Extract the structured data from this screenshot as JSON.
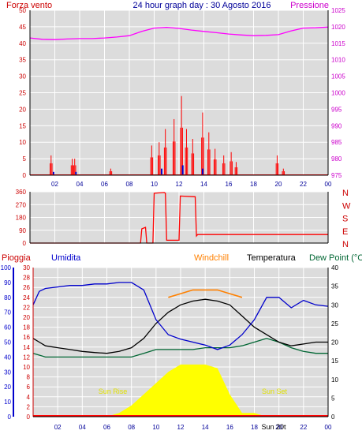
{
  "header": {
    "left_label": "Forza vento",
    "title": "24 hour graph day : 30 Agosto 2016",
    "right_label": "Pressione"
  },
  "colors": {
    "wind": "#ff0000",
    "gust": "#0000cc",
    "pressure": "#ff00ff",
    "direction": "#ff0000",
    "humidity": "#0000cc",
    "rain": "#ff0000",
    "windchill": "#ff8000",
    "temperature": "#000000",
    "dewpoint": "#006633",
    "sun": "#ffff00",
    "plot_bg": "#dcdcdc"
  },
  "chart_data": [
    {
      "type": "line",
      "name": "wind-pressure",
      "x_ticks": [
        "02",
        "04",
        "06",
        "08",
        "10",
        "12",
        "14",
        "16",
        "18",
        "20",
        "22",
        "00"
      ],
      "left_axis": {
        "label": "Forza vento",
        "ticks": [
          0,
          5,
          10,
          15,
          20,
          25,
          30,
          35,
          40,
          45,
          50
        ],
        "range": [
          0,
          50
        ]
      },
      "right_axis": {
        "label": "Pressione",
        "ticks": [
          975,
          980,
          985,
          990,
          995,
          1000,
          1005,
          1010,
          1015,
          1020,
          1025
        ],
        "range": [
          975,
          1025
        ]
      },
      "pressure": {
        "hours": [
          0,
          1,
          2,
          3,
          4,
          5,
          6,
          7,
          8,
          9,
          10,
          11,
          12,
          13,
          14,
          15,
          16,
          17,
          18,
          19,
          20,
          21,
          22,
          23,
          24
        ],
        "values": [
          1016.6,
          1016.2,
          1016.1,
          1016.3,
          1016.4,
          1016.4,
          1016.6,
          1016.9,
          1017.3,
          1018.6,
          1019.6,
          1019.8,
          1019.5,
          1019.0,
          1018.6,
          1018.2,
          1017.8,
          1017.5,
          1017.3,
          1017.4,
          1017.6,
          1018.7,
          1019.6,
          1019.7,
          1019.9
        ]
      },
      "wind_speed_spikes": [
        [
          1.7,
          6
        ],
        [
          3.4,
          5
        ],
        [
          3.6,
          5
        ],
        [
          6.5,
          2
        ],
        [
          9.8,
          9
        ],
        [
          10.4,
          10
        ],
        [
          10.9,
          14
        ],
        [
          11.6,
          17
        ],
        [
          12.2,
          24
        ],
        [
          12.6,
          14
        ],
        [
          13.1,
          11
        ],
        [
          13.9,
          19
        ],
        [
          14.4,
          13
        ],
        [
          14.9,
          8
        ],
        [
          15.6,
          6
        ],
        [
          16.2,
          7
        ],
        [
          16.6,
          4
        ],
        [
          19.9,
          6
        ],
        [
          20.4,
          2
        ]
      ],
      "gust_spikes": [
        [
          1.9,
          1
        ],
        [
          3.7,
          1
        ],
        [
          10.6,
          2
        ],
        [
          12.3,
          3
        ],
        [
          13.9,
          2
        ]
      ]
    },
    {
      "type": "line",
      "name": "wind-direction",
      "left_axis": {
        "ticks": [
          0,
          90,
          180,
          270,
          360
        ],
        "range": [
          0,
          360
        ]
      },
      "right_labels": [
        "N",
        "W",
        "S",
        "E",
        "N"
      ],
      "hours": [
        0,
        8.9,
        9.0,
        9.3,
        9.4,
        9.9,
        10.0,
        10.8,
        10.9,
        11.0,
        11.9,
        12.0,
        12.1,
        13.3,
        13.4,
        13.5,
        24
      ],
      "values": [
        0,
        0,
        100,
        110,
        0,
        0,
        350,
        355,
        350,
        20,
        20,
        20,
        330,
        325,
        50,
        60,
        60
      ]
    },
    {
      "type": "line",
      "name": "humidity-temperature",
      "x_ticks": [
        "02",
        "04",
        "06",
        "08",
        "10",
        "12",
        "14",
        "16",
        "18",
        "20",
        "22",
        "00"
      ],
      "header_labels": {
        "rain": "Pioggia",
        "humidity": "Umidita",
        "windchill": "Windchill",
        "temperature": "Temperatura",
        "dewpoint": "Dew Point (°C"
      },
      "humidity_axis": {
        "ticks": [
          0,
          10,
          20,
          30,
          40,
          50,
          60,
          70,
          80,
          90,
          100
        ],
        "range": [
          0,
          100
        ]
      },
      "rain_axis": {
        "ticks": [
          0,
          2,
          4,
          6,
          8,
          10,
          12,
          14,
          16,
          18,
          20,
          22,
          24,
          26,
          28,
          30
        ],
        "range": [
          0,
          30
        ]
      },
      "temperature_axis": {
        "ticks": [
          0,
          5,
          10,
          15,
          20,
          25,
          30,
          35,
          40
        ],
        "range": [
          0,
          40
        ]
      },
      "sun_rise": "Sun Rise",
      "sun_set": "Sun Set",
      "sun_marker_label": "Sun 20t",
      "hours": [
        0,
        0.5,
        1,
        2,
        3,
        4,
        5,
        6,
        7,
        8,
        9,
        10,
        11,
        12,
        13,
        14,
        15,
        16,
        17,
        18,
        19,
        20,
        21,
        22,
        23,
        24
      ],
      "humidity": [
        75,
        84,
        86,
        87,
        88,
        88,
        89,
        89,
        90,
        90,
        85,
        65,
        55,
        52,
        50,
        48,
        45,
        48,
        55,
        65,
        80,
        80,
        73,
        78,
        75,
        74
      ],
      "temperature": [
        21,
        20,
        19,
        18.5,
        18,
        17.5,
        17.2,
        17,
        17.5,
        18.5,
        21,
        25,
        28,
        30,
        31,
        31.5,
        31,
        30,
        27,
        24,
        22,
        20,
        19,
        19.5,
        20,
        20
      ],
      "windchill": [
        null,
        null,
        null,
        null,
        null,
        null,
        null,
        null,
        null,
        null,
        null,
        null,
        32,
        33,
        34,
        34,
        34,
        33,
        32,
        null,
        null,
        null,
        null,
        null,
        null,
        null
      ],
      "dewpoint": [
        17,
        16.5,
        16,
        16,
        16,
        16,
        16,
        16,
        16,
        16,
        17,
        18,
        18,
        18,
        18,
        18.5,
        18.5,
        18.5,
        19,
        20,
        21,
        20,
        18.5,
        17.5,
        17,
        17
      ],
      "solar": [
        0,
        0,
        0,
        0,
        0,
        0,
        0,
        0,
        1,
        3,
        6,
        9,
        12,
        14,
        14,
        14,
        13,
        6,
        1,
        1,
        0,
        0,
        0,
        0,
        0,
        0
      ]
    }
  ]
}
